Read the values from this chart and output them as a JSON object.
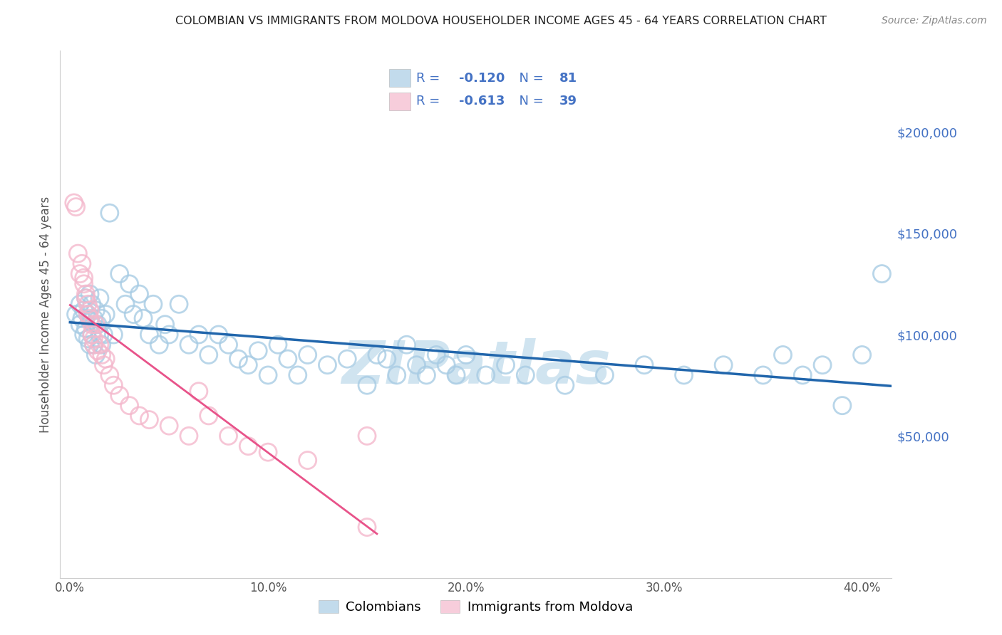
{
  "title": "COLOMBIAN VS IMMIGRANTS FROM MOLDOVA HOUSEHOLDER INCOME AGES 45 - 64 YEARS CORRELATION CHART",
  "source": "Source: ZipAtlas.com",
  "ylabel": "Householder Income Ages 45 - 64 years",
  "xlabel_ticks": [
    "0.0%",
    "10.0%",
    "20.0%",
    "30.0%",
    "40.0%"
  ],
  "xlabel_vals": [
    0.0,
    0.1,
    0.2,
    0.3,
    0.4
  ],
  "ytick_labels": [
    "$50,000",
    "$100,000",
    "$150,000",
    "$200,000"
  ],
  "ytick_vals": [
    50000,
    100000,
    150000,
    200000
  ],
  "xlim": [
    -0.005,
    0.415
  ],
  "ylim": [
    -20000,
    240000
  ],
  "colombian_R": -0.12,
  "colombian_N": 81,
  "moldova_R": -0.613,
  "moldova_N": 39,
  "blue_color": "#a8cce4",
  "pink_color": "#f4b8cc",
  "blue_line_color": "#2166ac",
  "pink_line_color": "#e8538a",
  "tick_color": "#4472c4",
  "legend_text_color": "#4472c4",
  "watermark": "ZIPatlas",
  "watermark_color": "#d0e4f0",
  "background_color": "#ffffff",
  "grid_color": "#cccccc",
  "colombians_x": [
    0.003,
    0.005,
    0.005,
    0.006,
    0.007,
    0.007,
    0.008,
    0.008,
    0.009,
    0.009,
    0.01,
    0.01,
    0.01,
    0.011,
    0.011,
    0.012,
    0.012,
    0.013,
    0.013,
    0.014,
    0.015,
    0.015,
    0.016,
    0.016,
    0.017,
    0.018,
    0.02,
    0.022,
    0.025,
    0.028,
    0.03,
    0.032,
    0.035,
    0.037,
    0.04,
    0.042,
    0.045,
    0.048,
    0.05,
    0.055,
    0.06,
    0.065,
    0.07,
    0.075,
    0.08,
    0.085,
    0.09,
    0.095,
    0.1,
    0.105,
    0.11,
    0.115,
    0.12,
    0.13,
    0.14,
    0.15,
    0.155,
    0.16,
    0.165,
    0.17,
    0.175,
    0.18,
    0.185,
    0.19,
    0.195,
    0.2,
    0.21,
    0.22,
    0.23,
    0.25,
    0.27,
    0.29,
    0.31,
    0.33,
    0.35,
    0.36,
    0.37,
    0.38,
    0.39,
    0.4,
    0.41
  ],
  "colombians_y": [
    110000,
    115000,
    105000,
    108000,
    112000,
    100000,
    118000,
    103000,
    98000,
    110000,
    95000,
    107000,
    120000,
    100000,
    115000,
    108000,
    95000,
    112000,
    90000,
    105000,
    100000,
    118000,
    95000,
    108000,
    100000,
    110000,
    160000,
    100000,
    130000,
    115000,
    125000,
    110000,
    120000,
    108000,
    100000,
    115000,
    95000,
    105000,
    100000,
    115000,
    95000,
    100000,
    90000,
    100000,
    95000,
    88000,
    85000,
    92000,
    80000,
    95000,
    88000,
    80000,
    90000,
    85000,
    88000,
    75000,
    90000,
    88000,
    80000,
    95000,
    85000,
    80000,
    90000,
    85000,
    80000,
    90000,
    80000,
    85000,
    80000,
    75000,
    80000,
    85000,
    80000,
    85000,
    80000,
    90000,
    80000,
    85000,
    65000,
    90000,
    130000
  ],
  "moldova_x": [
    0.002,
    0.003,
    0.004,
    0.005,
    0.006,
    0.007,
    0.007,
    0.008,
    0.008,
    0.009,
    0.009,
    0.01,
    0.01,
    0.011,
    0.011,
    0.012,
    0.012,
    0.013,
    0.014,
    0.015,
    0.016,
    0.017,
    0.018,
    0.02,
    0.022,
    0.025,
    0.03,
    0.035,
    0.04,
    0.05,
    0.06,
    0.065,
    0.07,
    0.08,
    0.09,
    0.1,
    0.12,
    0.15,
    0.15
  ],
  "moldova_y": [
    165000,
    163000,
    140000,
    130000,
    135000,
    128000,
    125000,
    120000,
    118000,
    110000,
    115000,
    108000,
    112000,
    105000,
    100000,
    98000,
    95000,
    105000,
    92000,
    95000,
    90000,
    85000,
    88000,
    80000,
    75000,
    70000,
    65000,
    60000,
    58000,
    55000,
    50000,
    72000,
    60000,
    50000,
    45000,
    42000,
    38000,
    5000,
    50000
  ]
}
